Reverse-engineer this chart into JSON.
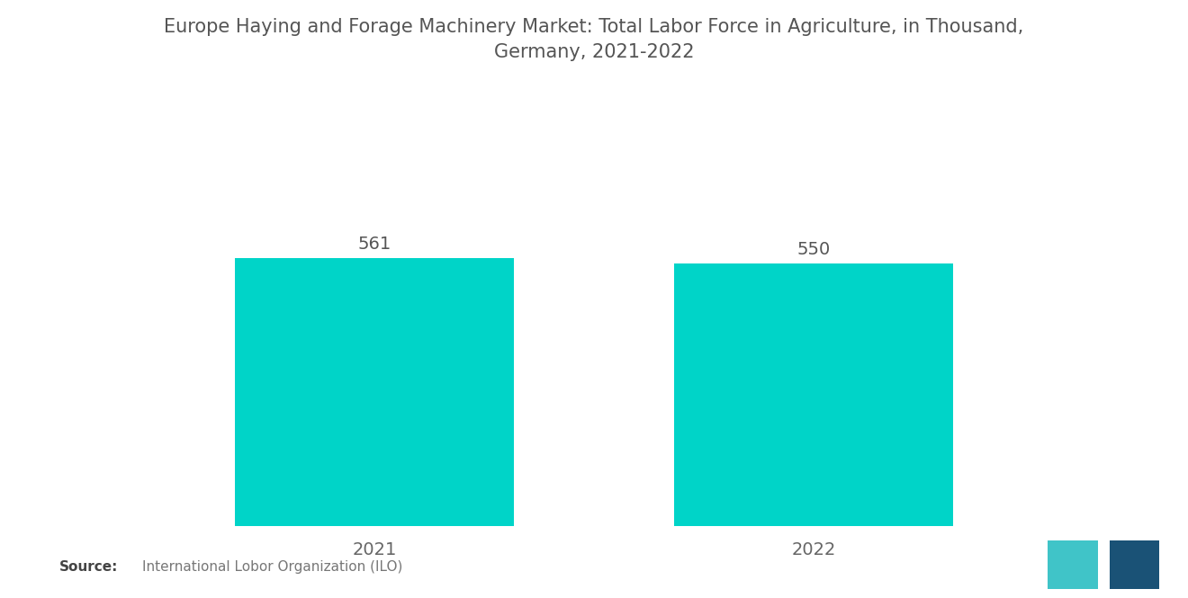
{
  "title_line1": "Europe Haying and Forage Machinery Market: Total Labor Force in Agriculture, in Thousand,",
  "title_line2": "Germany, 2021-2022",
  "categories": [
    "2021",
    "2022"
  ],
  "values": [
    561,
    550
  ],
  "bar_color": "#00D4C8",
  "source_bold": "Source:",
  "source_text": "International Lobor Organization (ILO)",
  "background_color": "#ffffff",
  "title_color": "#555555",
  "label_color": "#666666",
  "value_color": "#555555",
  "title_fontsize": 15,
  "label_fontsize": 14,
  "value_fontsize": 14,
  "source_fontsize": 11,
  "ylim": [
    0,
    750
  ],
  "bar_width": 0.28
}
